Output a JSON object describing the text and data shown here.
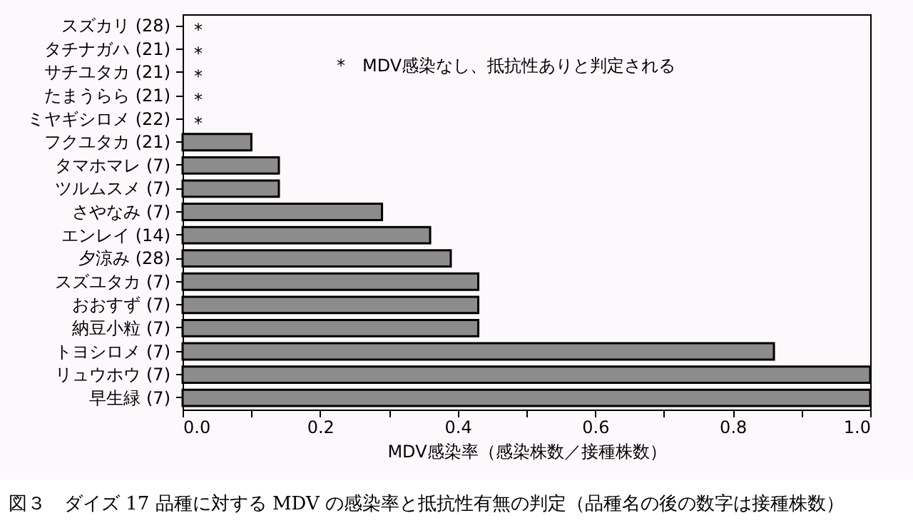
{
  "chart_data": {
    "type": "bar",
    "orientation": "horizontal",
    "xlabel": "MDV感染率（感染株数／接種株数）",
    "categories": [
      "スズカリ (28)",
      "タチナガハ (21)",
      "サチユタカ (21)",
      "たまうらら (21)",
      "ミヤギシロメ (22)",
      "フクユタカ (21)",
      "タマホマレ (7)",
      "ツルムスメ (7)",
      "さやなみ (7)",
      "エンレイ (14)",
      "夕涼み (28)",
      "スズユタカ (7)",
      "おおすず (7)",
      "納豆小粒 (7)",
      "トヨシロメ (7)",
      "リュウホウ (7)",
      "早生緑 (7)"
    ],
    "values": [
      0,
      0,
      0,
      0,
      0,
      0.1,
      0.14,
      0.14,
      0.29,
      0.36,
      0.39,
      0.43,
      0.43,
      0.43,
      0.86,
      1,
      1
    ],
    "color": "#8c8c8c",
    "xlim": [
      0,
      1
    ],
    "xticks": [
      {
        "value": 0,
        "label": "0.0"
      },
      {
        "value": 0.1,
        "label": null
      },
      {
        "value": 0.2,
        "label": "0.2"
      },
      {
        "value": 0.3,
        "label": null
      },
      {
        "value": 0.4,
        "label": "0.4"
      },
      {
        "value": 0.5,
        "label": null
      },
      {
        "value": 0.6,
        "label": "0.6"
      },
      {
        "value": 0.7,
        "label": null
      },
      {
        "value": 0.8,
        "label": "0.8"
      },
      {
        "value": 0.9,
        "label": null
      },
      {
        "value": 1,
        "label": "1.0"
      }
    ],
    "grid": false,
    "value_labels": [
      "*",
      "*",
      "*",
      "*",
      "*",
      null,
      null,
      null,
      null,
      null,
      null,
      null,
      null,
      null,
      null,
      null,
      null
    ],
    "annotations": [
      "*　MDV感染なし、抵抗性ありと判定される",
      "図３　ダイズ 17 品種に対する MDV の感染率と抵抗性有無の判定（品種名の後の数字は接種株数）"
    ]
  }
}
